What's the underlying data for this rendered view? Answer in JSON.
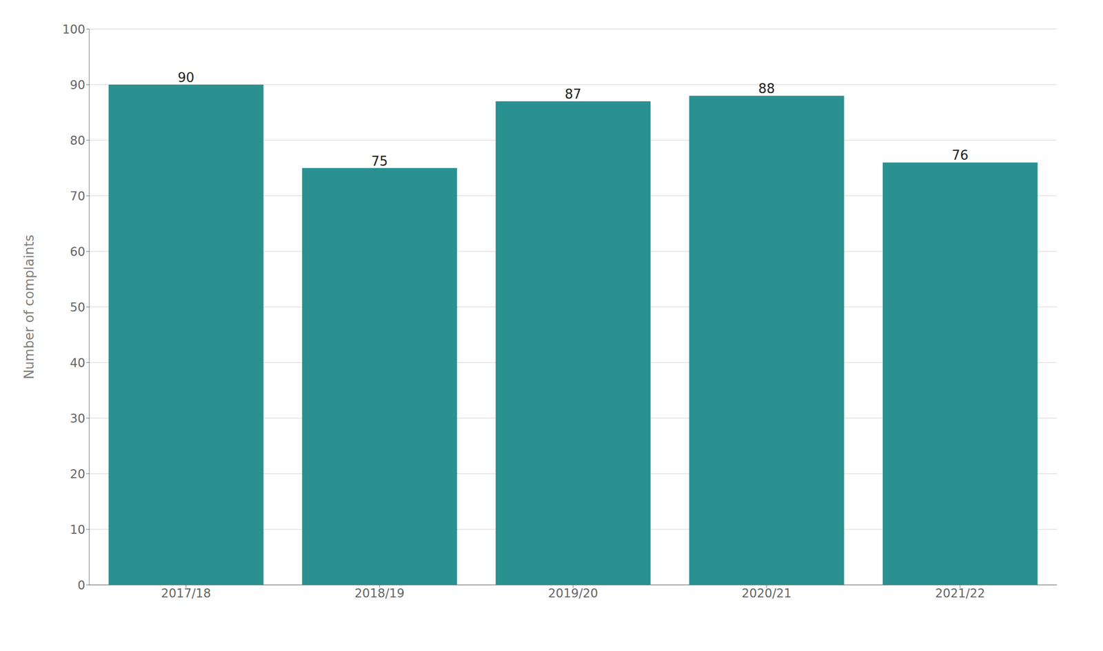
{
  "chart_data": {
    "type": "bar",
    "categories": [
      "2017/18",
      "2018/19",
      "2019/20",
      "2020/21",
      "2021/22"
    ],
    "values": [
      90,
      75,
      87,
      88,
      76
    ],
    "color": "#2a9090",
    "ylabel": "Number of complaints",
    "ylim": [
      0,
      100
    ],
    "yticks": [
      0,
      10,
      20,
      30,
      40,
      50,
      60,
      70,
      80,
      90,
      100
    ],
    "grid": true,
    "data_labels": true
  }
}
